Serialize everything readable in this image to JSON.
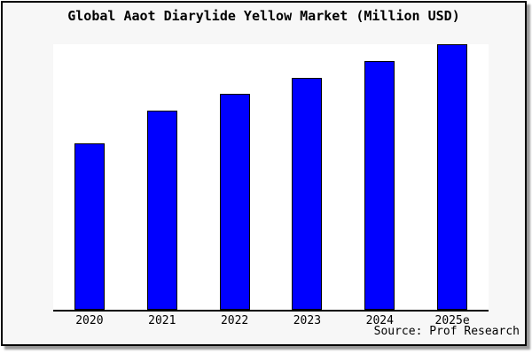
{
  "chart_data": {
    "type": "bar",
    "title": "Global Aaot Diarylide Yellow Market (Million USD)",
    "categories": [
      "2020",
      "2021",
      "2022",
      "2023",
      "2024",
      "2025e"
    ],
    "values": [
      62.7,
      75.0,
      81.3,
      87.3,
      93.7,
      100.0
    ],
    "xlabel": "",
    "ylabel": "",
    "ylim": [
      0,
      100
    ],
    "grid": false,
    "legend": false,
    "bar_color": "#0000ff",
    "bar_border_color": "#000000",
    "source": "Source: Prof Research"
  },
  "colors": {
    "figure_background": "#f7f7f7",
    "plot_background": "#ffffff",
    "frame_border": "#000000",
    "axis_line": "#000000",
    "shadow": "#999999",
    "text": "#000000"
  }
}
